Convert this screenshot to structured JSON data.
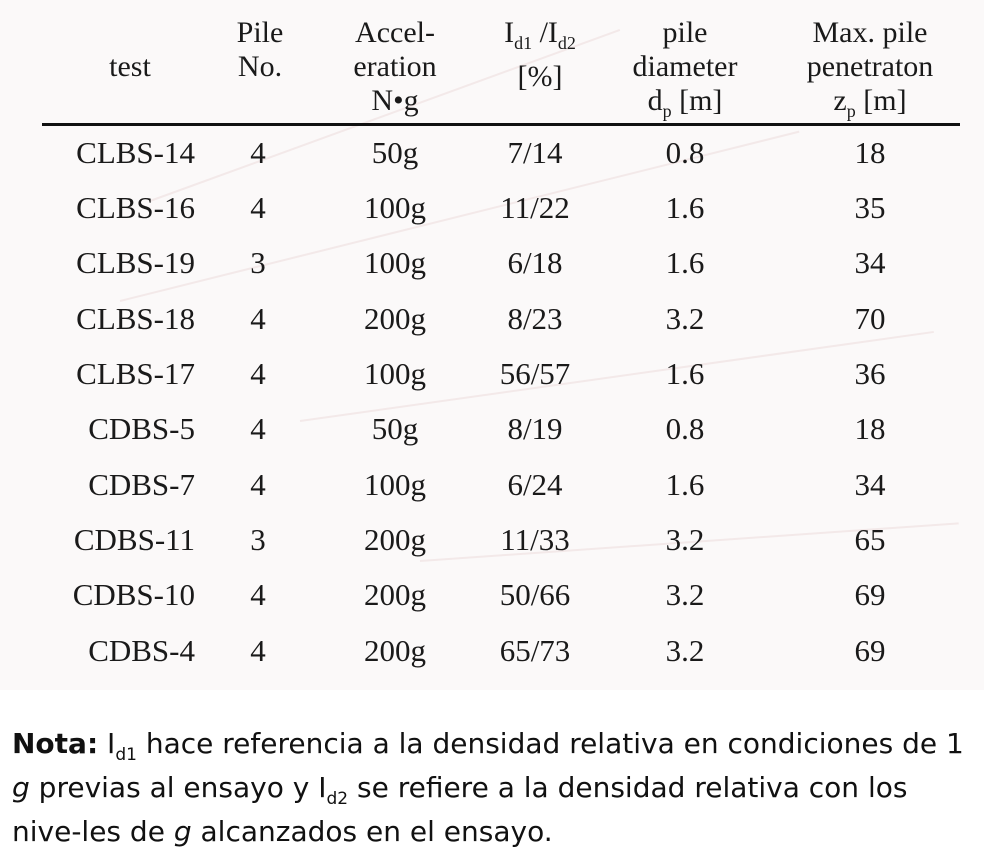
{
  "table": {
    "headers": {
      "test": [
        "test"
      ],
      "pile_no": [
        "Pile",
        "No."
      ],
      "acceleration": [
        "Accel-",
        "eration",
        "N•g"
      ],
      "id_ratio": [
        "I",
        "d1",
        " /I",
        "d2",
        "[%]"
      ],
      "diameter": [
        "pile",
        "diameter",
        "d",
        "p",
        " [m]"
      ],
      "penetration": [
        "Max. pile",
        "penetraton",
        "z",
        "p",
        " [m]"
      ]
    },
    "rows": [
      {
        "test": "CLBS-14",
        "pile": "4",
        "acc": "50g",
        "id": "7/14",
        "diam": "0.8",
        "zp": "18"
      },
      {
        "test": "CLBS-16",
        "pile": "4",
        "acc": "100g",
        "id": "11/22",
        "diam": "1.6",
        "zp": "35"
      },
      {
        "test": "CLBS-19",
        "pile": "3",
        "acc": "100g",
        "id": "6/18",
        "diam": "1.6",
        "zp": "34"
      },
      {
        "test": "CLBS-18",
        "pile": "4",
        "acc": "200g",
        "id": "8/23",
        "diam": "3.2",
        "zp": "70"
      },
      {
        "test": "CLBS-17",
        "pile": "4",
        "acc": "100g",
        "id": "56/57",
        "diam": "1.6",
        "zp": "36"
      },
      {
        "test": "CDBS-5",
        "pile": "4",
        "acc": "50g",
        "id": "8/19",
        "diam": "0.8",
        "zp": "18"
      },
      {
        "test": "CDBS-7",
        "pile": "4",
        "acc": "100g",
        "id": "6/24",
        "diam": "1.6",
        "zp": "34"
      },
      {
        "test": "CDBS-11",
        "pile": "3",
        "acc": "200g",
        "id": "11/33",
        "diam": "3.2",
        "zp": "65"
      },
      {
        "test": "CDBS-10",
        "pile": "4",
        "acc": "200g",
        "id": "50/66",
        "diam": "3.2",
        "zp": "69"
      },
      {
        "test": "CDBS-4",
        "pile": "4",
        "acc": "200g",
        "id": "65/73",
        "diam": "3.2",
        "zp": "69"
      }
    ]
  },
  "note": {
    "label": "Nota:",
    "t1": " I",
    "s1": "d1",
    "t2": " hace referencia a la densidad relativa en condiciones de 1 ",
    "g1": "g",
    "t3": " previas al ensayo y I",
    "s2": "d2",
    "t4": " se refiere a la densidad relativa con los nive-les de ",
    "g2": "g",
    "t5": " alcanzados en el ensayo."
  }
}
